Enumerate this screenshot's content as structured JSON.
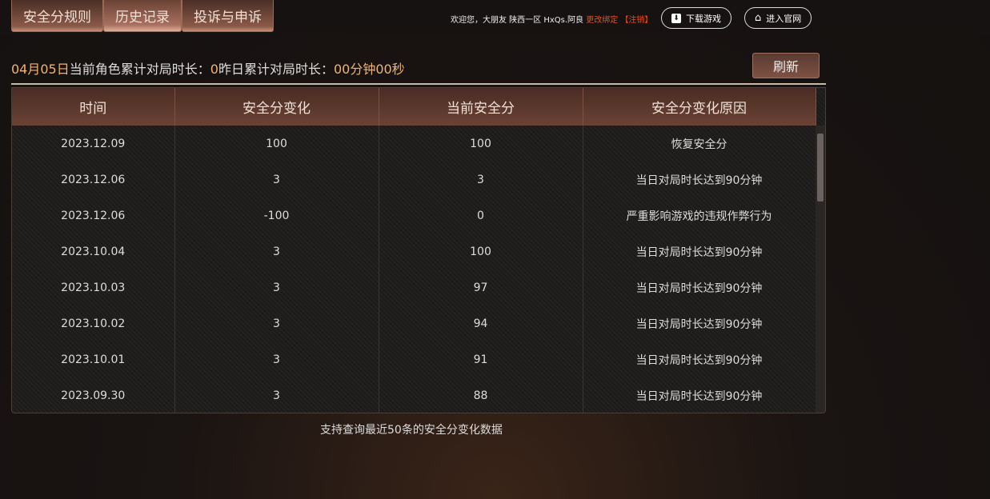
{
  "tabs": [
    {
      "label": "安全分规则"
    },
    {
      "label": "历史记录"
    },
    {
      "label": "投诉与申诉"
    }
  ],
  "header": {
    "welcome": "欢迎您，大朋友 陕西一区 HxQs.阿良",
    "change_binding": "更改绑定",
    "logout": "【注销】",
    "download_label": "下载游戏",
    "website_label": "进入官网"
  },
  "info": {
    "date": "04月05日",
    "current_label": "当前角色累计对局时长：",
    "current_value": "0",
    "yesterday_label": "昨日累计对局时长：",
    "yesterday_value": "00分钟00秒"
  },
  "refresh_label": "刷新",
  "table": {
    "headers": [
      "时间",
      "安全分变化",
      "当前安全分",
      "安全分变化原因"
    ],
    "rows": [
      [
        "2023.12.09",
        "100",
        "100",
        "恢复安全分"
      ],
      [
        "2023.12.06",
        "3",
        "3",
        "当日对局时长达到90分钟"
      ],
      [
        "2023.12.06",
        "-100",
        "0",
        "严重影响游戏的违规作弊行为"
      ],
      [
        "2023.10.04",
        "3",
        "100",
        "当日对局时长达到90分钟"
      ],
      [
        "2023.10.03",
        "3",
        "97",
        "当日对局时长达到90分钟"
      ],
      [
        "2023.10.02",
        "3",
        "94",
        "当日对局时长达到90分钟"
      ],
      [
        "2023.10.01",
        "3",
        "91",
        "当日对局时长达到90分钟"
      ],
      [
        "2023.09.30",
        "3",
        "88",
        "当日对局时长达到90分钟"
      ]
    ]
  },
  "note": "支持查询最近50条的安全分变化数据"
}
